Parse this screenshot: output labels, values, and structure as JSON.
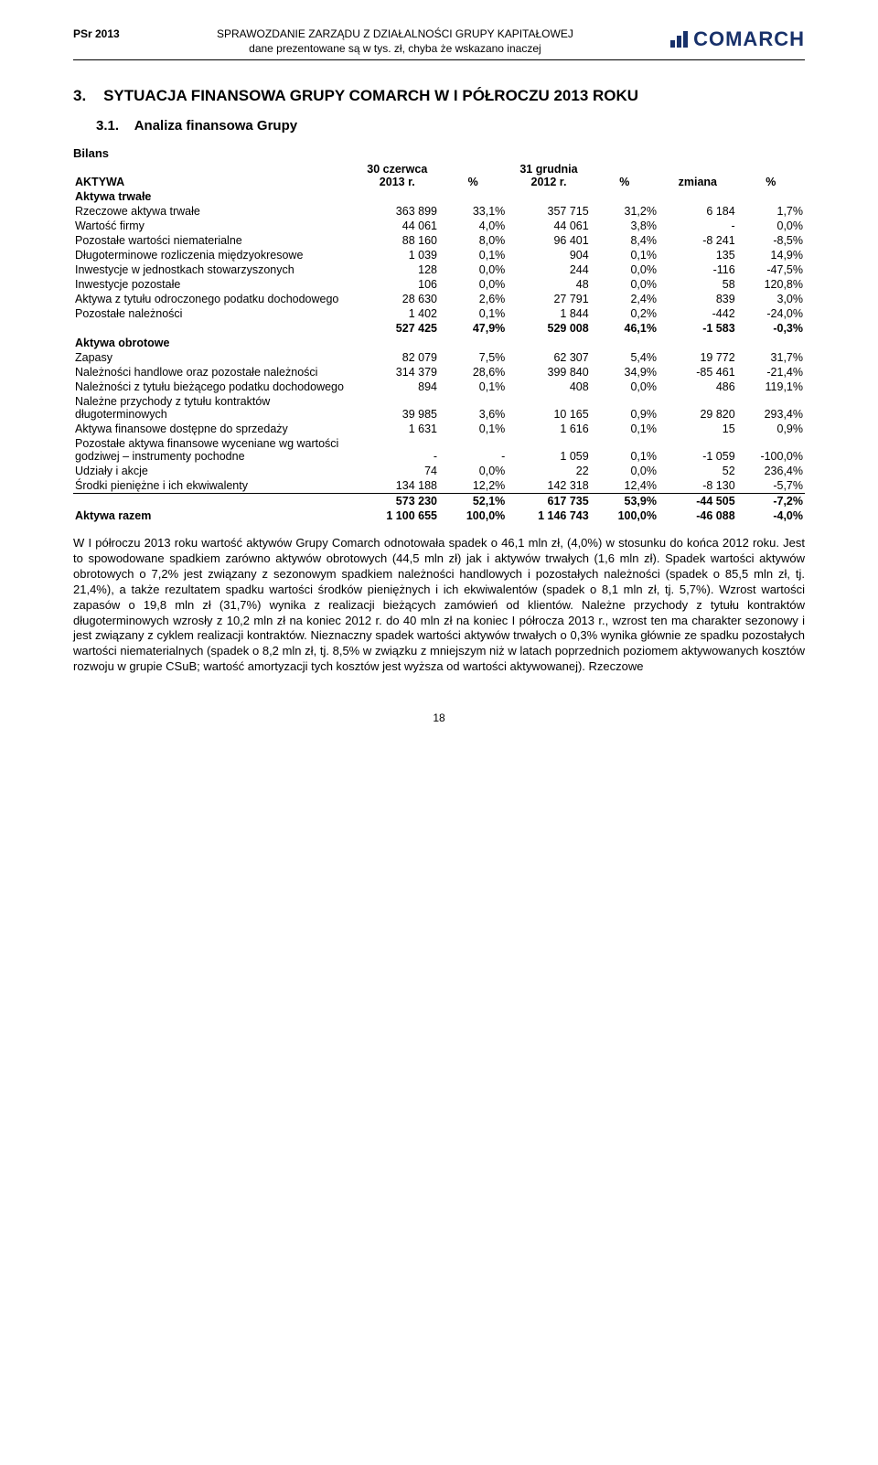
{
  "header": {
    "left": "PSr 2013",
    "center_line1": "SPRAWOZDANIE ZARZĄDU Z DZIAŁALNOŚCI GRUPY KAPITAŁOWEJ",
    "center_line2": "dane prezentowane są w tys. zł, chyba że wskazano inaczej",
    "logo_text": "COMARCH"
  },
  "section": {
    "num": "3.",
    "title": "SYTUACJA FINANSOWA GRUPY COMARCH W I PÓŁROCZU 2013 ROKU",
    "sub_num": "3.1.",
    "sub_title": "Analiza finansowa Grupy",
    "bilans": "Bilans"
  },
  "table": {
    "h_aktywa": "AKTYWA",
    "h_col1": "30 czerwca 2013 r.",
    "h_pct1": "%",
    "h_col2": "31 grudnia 2012 r.",
    "h_pct2": "%",
    "h_change": "zmiana",
    "h_pct3": "%",
    "rows": [
      {
        "label": "Aktywa trwałe",
        "bold": true
      },
      {
        "label": "Rzeczowe aktywa trwałe",
        "v": [
          "363 899",
          "33,1%",
          "357 715",
          "31,2%",
          "6 184",
          "1,7%"
        ]
      },
      {
        "label": "Wartość firmy",
        "v": [
          "44 061",
          "4,0%",
          "44 061",
          "3,8%",
          "-",
          "0,0%"
        ]
      },
      {
        "label": "Pozostałe wartości niematerialne",
        "v": [
          "88 160",
          "8,0%",
          "96 401",
          "8,4%",
          "-8 241",
          "-8,5%"
        ]
      },
      {
        "label": "Długoterminowe rozliczenia międzyokresowe",
        "v": [
          "1 039",
          "0,1%",
          "904",
          "0,1%",
          "135",
          "14,9%"
        ]
      },
      {
        "label": "Inwestycje w jednostkach stowarzyszonych",
        "v": [
          "128",
          "0,0%",
          "244",
          "0,0%",
          "-116",
          "-47,5%"
        ]
      },
      {
        "label": "Inwestycje pozostałe",
        "v": [
          "106",
          "0,0%",
          "48",
          "0,0%",
          "58",
          "120,8%"
        ]
      },
      {
        "label": "Aktywa z tytułu odroczonego podatku dochodowego",
        "v": [
          "28 630",
          "2,6%",
          "27 791",
          "2,4%",
          "839",
          "3,0%"
        ]
      },
      {
        "label": "Pozostałe należności",
        "v": [
          "1 402",
          "0,1%",
          "1 844",
          "0,2%",
          "-442",
          "-24,0%"
        ]
      },
      {
        "label": "",
        "v": [
          "527 425",
          "47,9%",
          "529 008",
          "46,1%",
          "-1 583",
          "-0,3%"
        ],
        "boldall": true
      },
      {
        "label": "Aktywa obrotowe",
        "bold": true
      },
      {
        "label": "Zapasy",
        "v": [
          "82 079",
          "7,5%",
          "62 307",
          "5,4%",
          "19 772",
          "31,7%"
        ]
      },
      {
        "label": "Należności handlowe oraz pozostałe należności",
        "v": [
          "314 379",
          "28,6%",
          "399 840",
          "34,9%",
          "-85 461",
          "-21,4%"
        ]
      },
      {
        "label": "Należności z tytułu bieżącego podatku dochodowego",
        "v": [
          "894",
          "0,1%",
          "408",
          "0,0%",
          "486",
          "119,1%"
        ]
      },
      {
        "label": "Należne przychody z tytułu kontraktów długoterminowych",
        "v": [
          "39 985",
          "3,6%",
          "10 165",
          "0,9%",
          "29 820",
          "293,4%"
        ]
      },
      {
        "label": "Aktywa finansowe dostępne do sprzedaży",
        "v": [
          "1 631",
          "0,1%",
          "1 616",
          "0,1%",
          "15",
          "0,9%"
        ]
      },
      {
        "label": "Pozostałe aktywa finansowe wyceniane wg wartości godziwej – instrumenty pochodne",
        "v": [
          "-",
          "-",
          "1 059",
          "0,1%",
          "-1 059",
          "-100,0%"
        ]
      },
      {
        "label": "Udziały i akcje",
        "v": [
          "74",
          "0,0%",
          "22",
          "0,0%",
          "52",
          "236,4%"
        ]
      },
      {
        "label": "Środki pieniężne i ich ekwiwalenty",
        "v": [
          "134 188",
          "12,2%",
          "142 318",
          "12,4%",
          "-8 130",
          "-5,7%"
        ]
      },
      {
        "label": "",
        "v": [
          "573 230",
          "52,1%",
          "617 735",
          "53,9%",
          "-44 505",
          "-7,2%"
        ],
        "boldall": true,
        "border": true
      },
      {
        "label": "Aktywa razem",
        "v": [
          "1 100 655",
          "100,0%",
          "1 146 743",
          "100,0%",
          "-46 088",
          "-4,0%"
        ],
        "boldall": true
      }
    ]
  },
  "body_text": "W I półroczu 2013 roku wartość aktywów Grupy Comarch odnotowała spadek o 46,1 mln zł, (4,0%) w stosunku do końca 2012 roku. Jest to spowodowane spadkiem zarówno aktywów obrotowych (44,5 mln zł) jak i aktywów trwałych (1,6 mln zł). Spadek wartości aktywów obrotowych o 7,2% jest związany z sezonowym spadkiem należności handlowych i pozostałych należności (spadek o 85,5 mln zł, tj. 21,4%), a także rezultatem spadku wartości środków pieniężnych i ich ekwiwalentów (spadek o 8,1 mln zł, tj. 5,7%). Wzrost wartości zapasów o 19,8 mln zł (31,7%) wynika z realizacji bieżących zamówień od klientów. Należne przychody z tytułu kontraktów długoterminowych wzrosły z 10,2 mln zł na koniec 2012 r. do 40 mln zł na koniec I półrocza 2013 r., wzrost ten ma charakter sezonowy i jest związany z cyklem realizacji kontraktów. Nieznaczny spadek wartości aktywów trwałych o 0,3% wynika głównie ze spadku pozostałych wartości niematerialnych (spadek o 8,2 mln zł, tj. 8,5% w związku z mniejszym niż w latach poprzednich poziomem aktywowanych kosztów rozwoju w grupie CSuB; wartość amortyzacji tych kosztów jest wyższa od wartości aktywowanej). Rzeczowe",
  "page_number": "18"
}
